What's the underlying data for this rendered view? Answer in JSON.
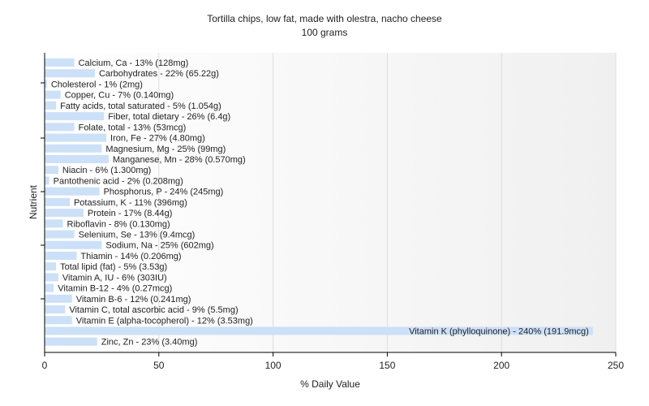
{
  "chart_data": {
    "type": "bar",
    "orientation": "horizontal",
    "title": "Tortilla chips, low fat, made with olestra, nacho cheese",
    "subtitle": "100 grams",
    "xlabel": "% Daily Value",
    "ylabel": "Nutrient",
    "xlim": [
      0,
      250
    ],
    "xticks": [
      0,
      50,
      100,
      150,
      200,
      250
    ],
    "grid": true,
    "bar_color": "#cce0f8",
    "categories": [
      "Calcium, Ca - 13% (128mg)",
      "Carbohydrates - 22% (65.22g)",
      "Cholesterol - 1% (2mg)",
      "Copper, Cu - 7% (0.140mg)",
      "Fatty acids, total saturated - 5% (1.054g)",
      "Fiber, total dietary - 26% (6.4g)",
      "Folate, total - 13% (53mcg)",
      "Iron, Fe - 27% (4.80mg)",
      "Magnesium, Mg - 25% (99mg)",
      "Manganese, Mn - 28% (0.570mg)",
      "Niacin - 6% (1.300mg)",
      "Pantothenic acid - 2% (0.208mg)",
      "Phosphorus, P - 24% (245mg)",
      "Potassium, K - 11% (396mg)",
      "Protein - 17% (8.44g)",
      "Riboflavin - 8% (0.130mg)",
      "Selenium, Se - 13% (9.4mcg)",
      "Sodium, Na - 25% (602mg)",
      "Thiamin - 14% (0.206mg)",
      "Total lipid (fat) - 5% (3.53g)",
      "Vitamin A, IU - 6% (303IU)",
      "Vitamin B-12 - 4% (0.27mcg)",
      "Vitamin B-6 - 12% (0.241mg)",
      "Vitamin C, total ascorbic acid - 9% (5.5mg)",
      "Vitamin E (alpha-tocopherol) - 12% (3.53mg)",
      "Vitamin K (phylloquinone) - 240% (191.9mcg)",
      "Zinc, Zn - 23% (3.40mg)"
    ],
    "values": [
      13,
      22,
      1,
      7,
      5,
      26,
      13,
      27,
      25,
      28,
      6,
      2,
      24,
      11,
      17,
      8,
      13,
      25,
      14,
      5,
      6,
      4,
      12,
      9,
      12,
      240,
      23
    ]
  }
}
